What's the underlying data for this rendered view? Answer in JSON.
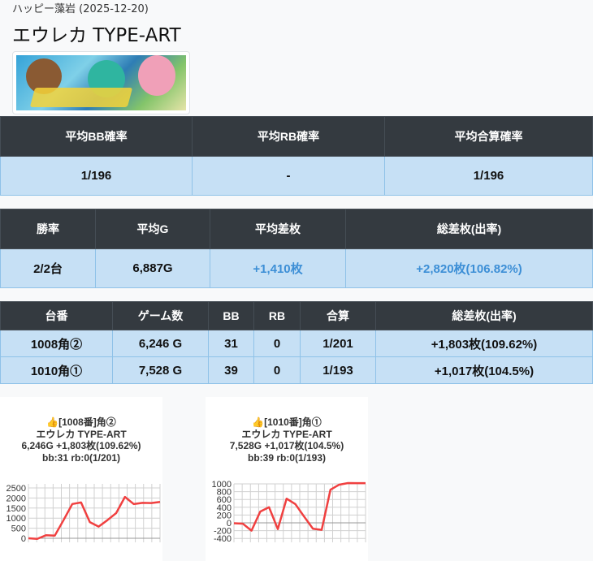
{
  "header": {
    "breadcrumb": "ハッピー藻岩 (2025-12-20)",
    "title": "エウレカ TYPE-ART"
  },
  "summary_prob": {
    "headers": [
      "平均BB確率",
      "平均RB確率",
      "平均合算確率"
    ],
    "values": [
      "1/196",
      "-",
      "1/196"
    ]
  },
  "summary_win": {
    "headers": [
      "勝率",
      "平均G",
      "平均差枚",
      "総差枚(出率)"
    ],
    "values": [
      "2/2台",
      "6,887G",
      "+1,410枚",
      "+2,820枚(106.82%)"
    ]
  },
  "machines": {
    "headers": [
      "台番",
      "ゲーム数",
      "BB",
      "RB",
      "合算",
      "総差枚(出率)"
    ],
    "rows": [
      [
        "1008角②",
        "6,246 G",
        "31",
        "0",
        "1/201",
        "+1,803枚(109.62%)"
      ],
      [
        "1010角①",
        "7,528 G",
        "39",
        "0",
        "1/193",
        "+1,017枚(104.5%)"
      ]
    ]
  },
  "cards": [
    {
      "line1": "👍[1008番]角②",
      "line2": "エウレカ TYPE-ART",
      "line3": "6,246G +1,803枚(109.62%)",
      "line4": "bb:31 rb:0(1/201)"
    },
    {
      "line1": "👍[1010番]角①",
      "line2": "エウレカ TYPE-ART",
      "line3": "7,528G +1,017枚(104.5%)",
      "line4": "bb:39 rb:0(1/193)"
    }
  ],
  "chart_data": [
    {
      "type": "line",
      "title": "",
      "ylim": [
        -200,
        2700
      ],
      "yticks": [
        0,
        500,
        1000,
        1500,
        2000,
        2500
      ],
      "color": "#f04040",
      "x": [
        0,
        1,
        2,
        3,
        4,
        5,
        6,
        7,
        8,
        9,
        10,
        11,
        12,
        13,
        14,
        15
      ],
      "values": [
        0,
        -30,
        150,
        130,
        900,
        1700,
        1780,
        800,
        580,
        900,
        1250,
        2050,
        1700,
        1760,
        1750,
        1803
      ]
    },
    {
      "type": "line",
      "title": "",
      "ylim": [
        -500,
        1000
      ],
      "yticks": [
        -400,
        -200,
        0,
        200,
        400,
        600,
        800,
        1000
      ],
      "color": "#f04040",
      "x": [
        0,
        1,
        2,
        3,
        4,
        5,
        6,
        7,
        8,
        9,
        10,
        11,
        12,
        13,
        14,
        15
      ],
      "values": [
        -10,
        -20,
        -200,
        290,
        400,
        -160,
        620,
        480,
        160,
        -150,
        -180,
        850,
        980,
        1020,
        1017,
        1017
      ]
    }
  ]
}
